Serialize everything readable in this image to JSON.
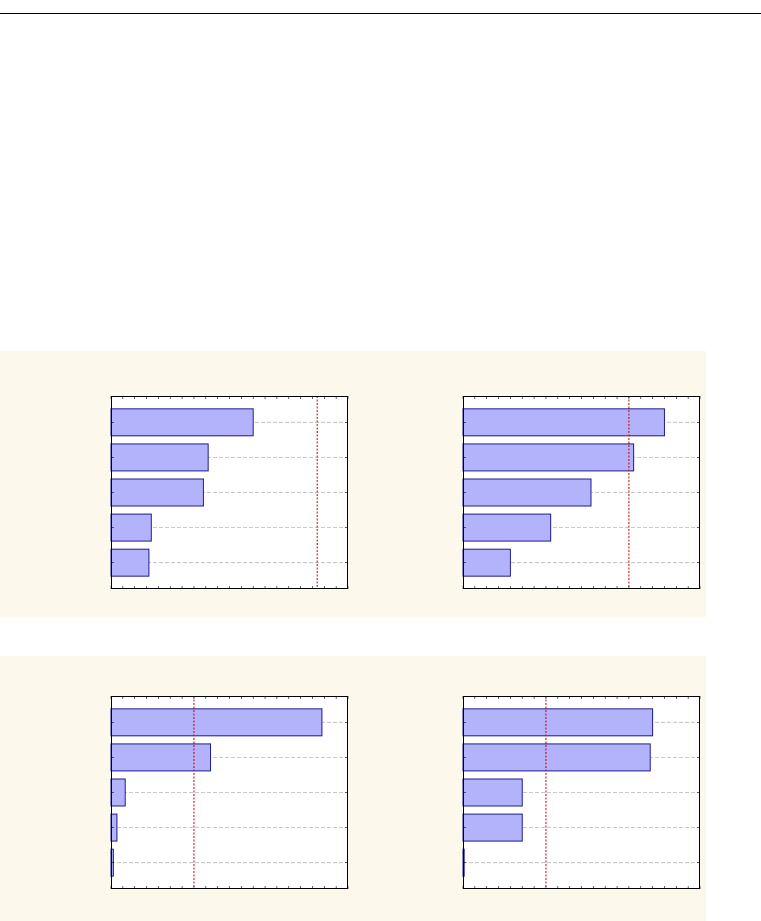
{
  "chart_data": [
    {
      "type": "bar",
      "orientation": "horizontal",
      "categories": [
        "",
        "",
        "",
        "",
        ""
      ],
      "values": [
        0.6,
        0.41,
        0.39,
        0.17,
        0.16
      ],
      "xlim": [
        0,
        1
      ],
      "reference_line": 0.87,
      "grid": true,
      "colors": {
        "bar_fill": "#b3b3fb",
        "bar_stroke": "#1c1c8e",
        "reference_line": "#cc0000",
        "grid": "#b8b8b8"
      }
    },
    {
      "type": "bar",
      "orientation": "horizontal",
      "categories": [
        "",
        "",
        "",
        "",
        ""
      ],
      "values": [
        0.85,
        0.72,
        0.54,
        0.37,
        0.2
      ],
      "xlim": [
        0,
        1
      ],
      "reference_line": 0.7,
      "grid": true,
      "colors": {
        "bar_fill": "#b3b3fb",
        "bar_stroke": "#1c1c8e",
        "reference_line": "#cc0000",
        "grid": "#b8b8b8"
      }
    },
    {
      "type": "bar",
      "orientation": "horizontal",
      "categories": [
        "",
        "",
        "",
        "",
        ""
      ],
      "values": [
        0.89,
        0.42,
        0.06,
        0.025,
        0.01
      ],
      "xlim": [
        0,
        1
      ],
      "reference_line": 0.35,
      "grid": true,
      "colors": {
        "bar_fill": "#b3b3fb",
        "bar_stroke": "#1c1c8e",
        "reference_line": "#cc0000",
        "grid": "#b8b8b8"
      }
    },
    {
      "type": "bar",
      "orientation": "horizontal",
      "categories": [
        "",
        "",
        "",
        "",
        ""
      ],
      "values": [
        0.8,
        0.79,
        0.25,
        0.25,
        0.005
      ],
      "xlim": [
        0,
        1
      ],
      "reference_line": 0.35,
      "grid": true,
      "colors": {
        "bar_fill": "#b3b3fb",
        "bar_stroke": "#1c1c8e",
        "reference_line": "#cc0000",
        "grid": "#b8b8b8"
      }
    }
  ]
}
